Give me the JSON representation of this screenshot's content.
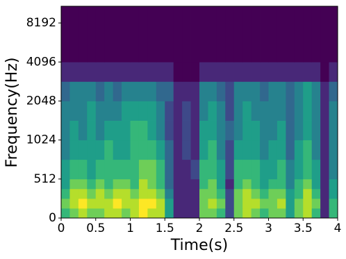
{
  "chart_data": {
    "type": "heatmap",
    "xlabel": "Time(s)",
    "ylabel": "Frequency(Hz)",
    "colormap": "viridis",
    "vmin": 0,
    "vmax": 9,
    "yscale": "symlog",
    "linthresh": 512,
    "xlim": [
      0,
      4
    ],
    "xticks": [
      0,
      0.5,
      1,
      1.5,
      2,
      2.5,
      3,
      3.5,
      4
    ],
    "ylim": [
      0,
      11025
    ],
    "yticks": [
      0,
      512,
      1024,
      2048,
      4096,
      8192
    ],
    "x_edges": [
      0,
      0.125,
      0.25,
      0.375,
      0.5,
      0.625,
      0.75,
      0.875,
      1,
      1.125,
      1.25,
      1.375,
      1.5,
      1.625,
      1.75,
      1.875,
      2,
      2.125,
      2.25,
      2.375,
      2.5,
      2.625,
      2.75,
      2.875,
      3,
      3.125,
      3.25,
      3.375,
      3.5,
      3.625,
      3.75,
      3.875,
      4
    ],
    "y_edges": [
      0,
      128,
      256,
      384,
      512,
      724,
      1024,
      1448,
      2048,
      2896,
      4096,
      8192,
      11025
    ],
    "z": [
      [
        6,
        7,
        8,
        7,
        7,
        8,
        8,
        7,
        8,
        9,
        8,
        8,
        5,
        1,
        1,
        1,
        7,
        7,
        6,
        2,
        7,
        8,
        7,
        6,
        7,
        7,
        5,
        7,
        8,
        6,
        1,
        6
      ],
      [
        7,
        8,
        9,
        8,
        8,
        8,
        9,
        8,
        8,
        9,
        9,
        8,
        5,
        1,
        1,
        1,
        7,
        8,
        7,
        2,
        7,
        8,
        8,
        7,
        7,
        8,
        5,
        7,
        8,
        7,
        1,
        6
      ],
      [
        6,
        8,
        8,
        7,
        8,
        7,
        8,
        8,
        7,
        8,
        8,
        7,
        4,
        1,
        1,
        1,
        7,
        7,
        6,
        2,
        7,
        8,
        7,
        6,
        7,
        7,
        5,
        6,
        8,
        6,
        1,
        5
      ],
      [
        5,
        7,
        7,
        6,
        7,
        6,
        7,
        7,
        6,
        8,
        7,
        6,
        3,
        1,
        1,
        1,
        6,
        7,
        5,
        1,
        6,
        7,
        6,
        5,
        6,
        6,
        4,
        6,
        7,
        5,
        1,
        5
      ],
      [
        5,
        6,
        6,
        5,
        6,
        6,
        6,
        6,
        6,
        7,
        7,
        6,
        3,
        1,
        1,
        2,
        6,
        6,
        5,
        2,
        6,
        6,
        6,
        5,
        5,
        6,
        4,
        5,
        6,
        5,
        1,
        4
      ],
      [
        4,
        5,
        5,
        5,
        5,
        6,
        5,
        5,
        6,
        6,
        6,
        5,
        3,
        1,
        2,
        1,
        5,
        6,
        4,
        2,
        5,
        5,
        5,
        4,
        5,
        5,
        3,
        5,
        6,
        4,
        1,
        4
      ],
      [
        4,
        5,
        4,
        5,
        4,
        5,
        5,
        5,
        6,
        6,
        5,
        4,
        2,
        1,
        2,
        1,
        5,
        5,
        4,
        3,
        4,
        5,
        5,
        4,
        4,
        5,
        3,
        4,
        5,
        4,
        1,
        4
      ],
      [
        4,
        4,
        4,
        5,
        4,
        4,
        4,
        5,
        5,
        5,
        5,
        4,
        2,
        1,
        2,
        1,
        4,
        5,
        4,
        2,
        4,
        5,
        4,
        4,
        4,
        4,
        3,
        4,
        5,
        4,
        1,
        4
      ],
      [
        3,
        4,
        4,
        4,
        3,
        4,
        3,
        4,
        4,
        4,
        4,
        3,
        3,
        1,
        1,
        1,
        4,
        4,
        3,
        2,
        4,
        4,
        4,
        3,
        4,
        4,
        3,
        4,
        5,
        4,
        1,
        3
      ],
      [
        1,
        1,
        1,
        1,
        1,
        1,
        1,
        1,
        1,
        1,
        1,
        1,
        1,
        0,
        0,
        0,
        1,
        1,
        1,
        1,
        1,
        1,
        1,
        1,
        1,
        1,
        1,
        1,
        1,
        1,
        0,
        1
      ],
      [
        0,
        0,
        0,
        0,
        0,
        0,
        0,
        0,
        0,
        0,
        0,
        0,
        0,
        0,
        0,
        0,
        0,
        0,
        0,
        0,
        0,
        0,
        0,
        0,
        0,
        0,
        0,
        0,
        0,
        0,
        0,
        0
      ],
      [
        0,
        0,
        0,
        0,
        0,
        0,
        0,
        0,
        0,
        0,
        0,
        0,
        0,
        0,
        0,
        0,
        0,
        0,
        0,
        0,
        0,
        0,
        0,
        0,
        0,
        0,
        0,
        0,
        0,
        0,
        0,
        0
      ]
    ]
  }
}
